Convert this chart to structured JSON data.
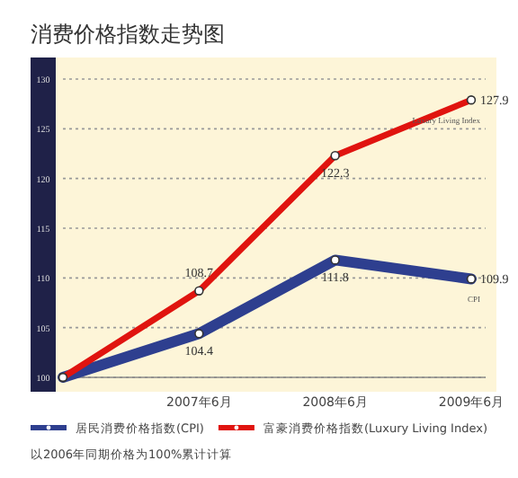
{
  "chart_data": {
    "type": "line",
    "title": "消费价格指数走势图",
    "categories": [
      null,
      "2007年6月",
      "2008年6月",
      "2009年6月"
    ],
    "series": [
      {
        "name": "居民消费价格指数(CPI)",
        "color": "#2e3f8f",
        "values": [
          100,
          104.4,
          111.8,
          109.9
        ],
        "value_labels": [
          null,
          "104.4",
          "111.8",
          "109.9"
        ]
      },
      {
        "name": "富豪消费价格指数(Luxury Living Index)",
        "color": "#e0140f",
        "values": [
          100,
          108.7,
          122.3,
          127.9
        ],
        "value_labels": [
          null,
          "108.7",
          "122.3",
          "127.9"
        ]
      }
    ],
    "ylim": [
      100,
      130
    ],
    "yticks": [
      100,
      105,
      110,
      115,
      120,
      125,
      130
    ],
    "grid": "y",
    "marker": "circle",
    "legend": "bottom",
    "annotations": [
      {
        "text": "CPI",
        "x": "2009年6月",
        "y": 109.9
      },
      {
        "text": "Luxury Living Index",
        "x": "2009年6月",
        "y": 127.9
      },
      "以2006年同期价格为100%累计计算"
    ]
  }
}
